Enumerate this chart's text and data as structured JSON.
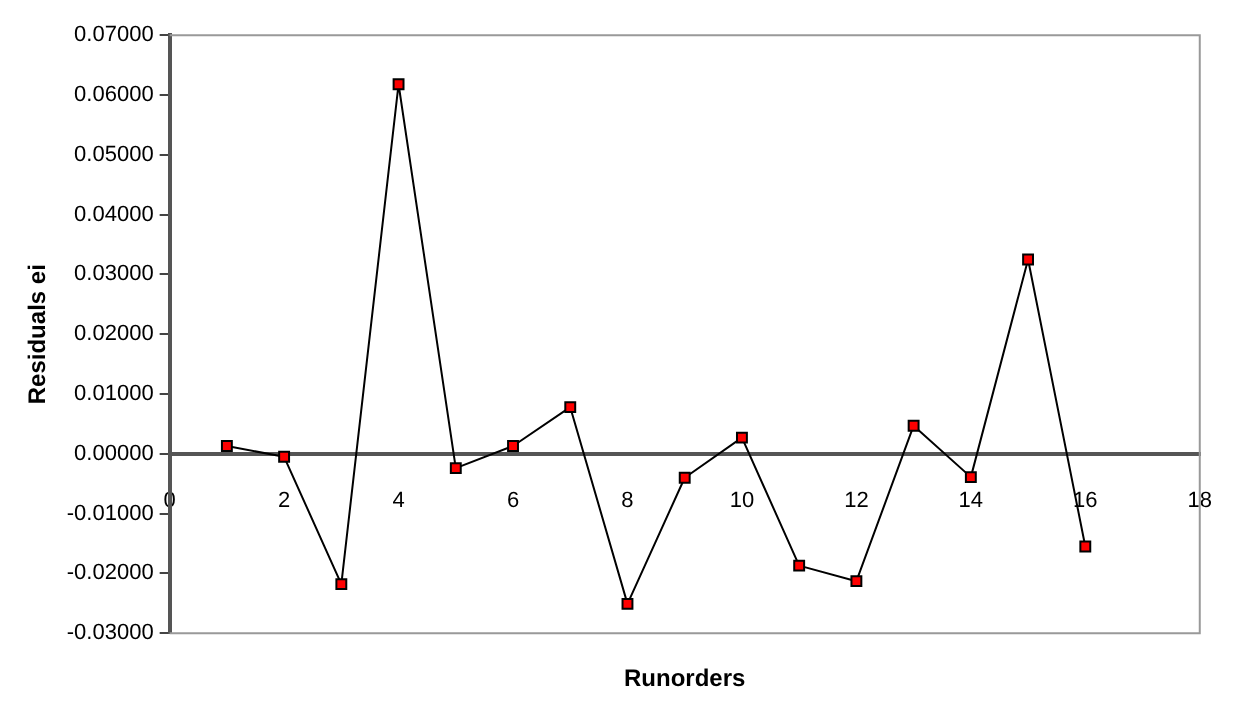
{
  "chart_data": {
    "type": "line",
    "xlabel": "Runorders",
    "ylabel": "Residuals ei",
    "x": [
      1,
      2,
      3,
      4,
      5,
      6,
      7,
      8,
      9,
      10,
      11,
      12,
      13,
      14,
      15,
      16
    ],
    "series": [
      {
        "color": "#ff0000",
        "values": [
          0.0013,
          -0.0005,
          -0.0218,
          0.0618,
          -0.0024,
          0.0013,
          0.0078,
          -0.0251,
          -0.004,
          0.0027,
          -0.0187,
          -0.0213,
          0.0047,
          -0.0039,
          0.0325,
          -0.0155
        ]
      }
    ],
    "xlim": [
      0,
      18
    ],
    "xticks": [
      0,
      2,
      4,
      6,
      8,
      10,
      12,
      14,
      16,
      18
    ],
    "ylim": [
      -0.03,
      0.07
    ],
    "yticks": [
      {
        "value": -0.03,
        "label": "-0.03000"
      },
      {
        "value": -0.02,
        "label": "-0.02000"
      },
      {
        "value": -0.01,
        "label": "-0.01000"
      },
      {
        "value": 0,
        "label": "0.00000"
      },
      {
        "value": 0.01,
        "label": "0.01000"
      },
      {
        "value": 0.02,
        "label": "0.02000"
      },
      {
        "value": 0.03,
        "label": "0.03000"
      },
      {
        "value": 0.04,
        "label": "0.04000"
      },
      {
        "value": 0.05,
        "label": "0.05000"
      },
      {
        "value": 0.06,
        "label": "0.06000"
      },
      {
        "value": 0.07,
        "label": "0.07000"
      }
    ],
    "grid": false,
    "legend": false,
    "marker": "square",
    "line_style": "solid"
  }
}
